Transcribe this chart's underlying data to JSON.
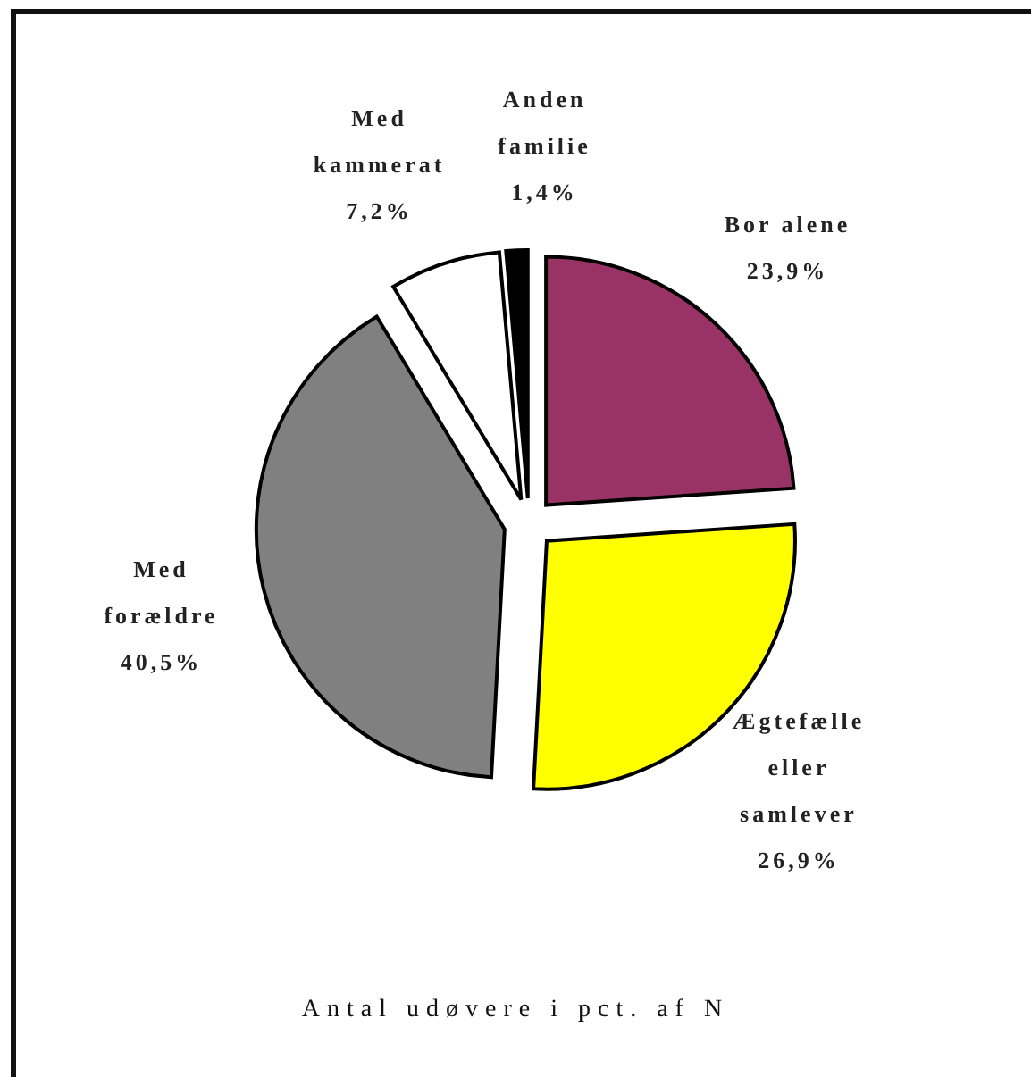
{
  "chart_data": {
    "type": "pie",
    "categories": [
      "Bor alene",
      "Ægtefælle eller samlever",
      "Med forældre",
      "Med kammerat",
      "Anden familie"
    ],
    "values": [
      23.9,
      26.9,
      40.5,
      7.2,
      1.4
    ],
    "colors": [
      "#993366",
      "#ffff00",
      "#808080",
      "#ffffff",
      "#000000"
    ],
    "value_labels": [
      "23,9%",
      "26,9%",
      "40,5%",
      "7,2%",
      "1,4%"
    ],
    "annotations": [
      "Antal udøvere i pct. af N"
    ]
  }
}
